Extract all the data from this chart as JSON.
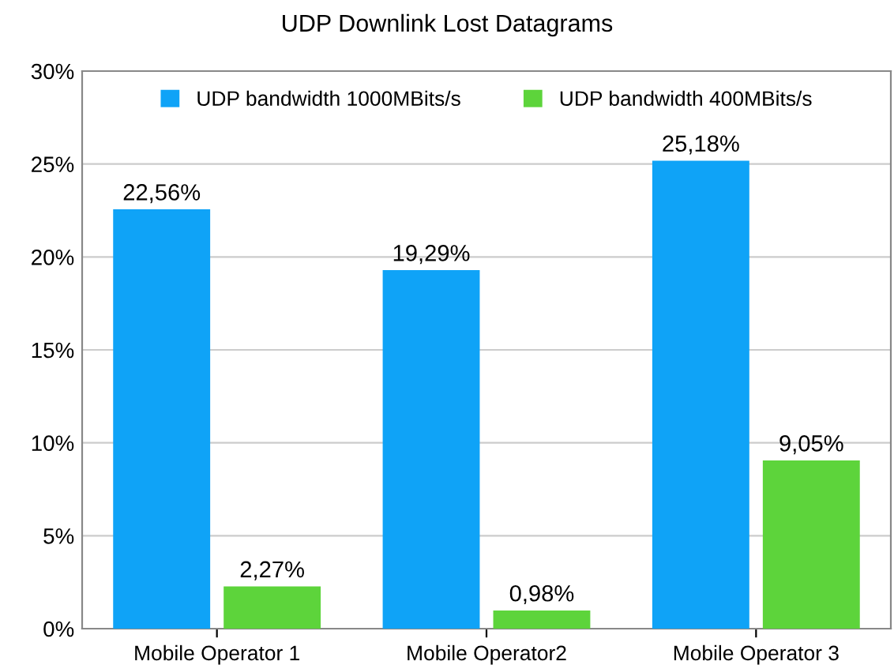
{
  "chart_data": {
    "type": "bar",
    "title": "UDP Downlink Lost Datagrams",
    "categories": [
      "Mobile Operator 1",
      "Mobile Operator2",
      "Mobile Operator 3"
    ],
    "series": [
      {
        "name": "UDP bandwidth 1000MBits/s",
        "color": "#0fa3f7",
        "values": [
          22.56,
          19.29,
          25.18
        ],
        "value_labels": [
          "22,56%",
          "19,29%",
          "25,18%"
        ]
      },
      {
        "name": "UDP bandwidth 400MBits/s",
        "color": "#5dd43b",
        "values": [
          2.27,
          0.98,
          9.05
        ],
        "value_labels": [
          "2,27%",
          "0,98%",
          "9,05%"
        ]
      }
    ],
    "ylim": [
      0,
      30
    ],
    "yticks": [
      {
        "value": 0,
        "label": "0%"
      },
      {
        "value": 5,
        "label": "5%"
      },
      {
        "value": 10,
        "label": "10%"
      },
      {
        "value": 15,
        "label": "15%"
      },
      {
        "value": 20,
        "label": "20%"
      },
      {
        "value": 25,
        "label": "25%"
      },
      {
        "value": 30,
        "label": "30%"
      }
    ],
    "grid": "y",
    "legend": "top"
  }
}
